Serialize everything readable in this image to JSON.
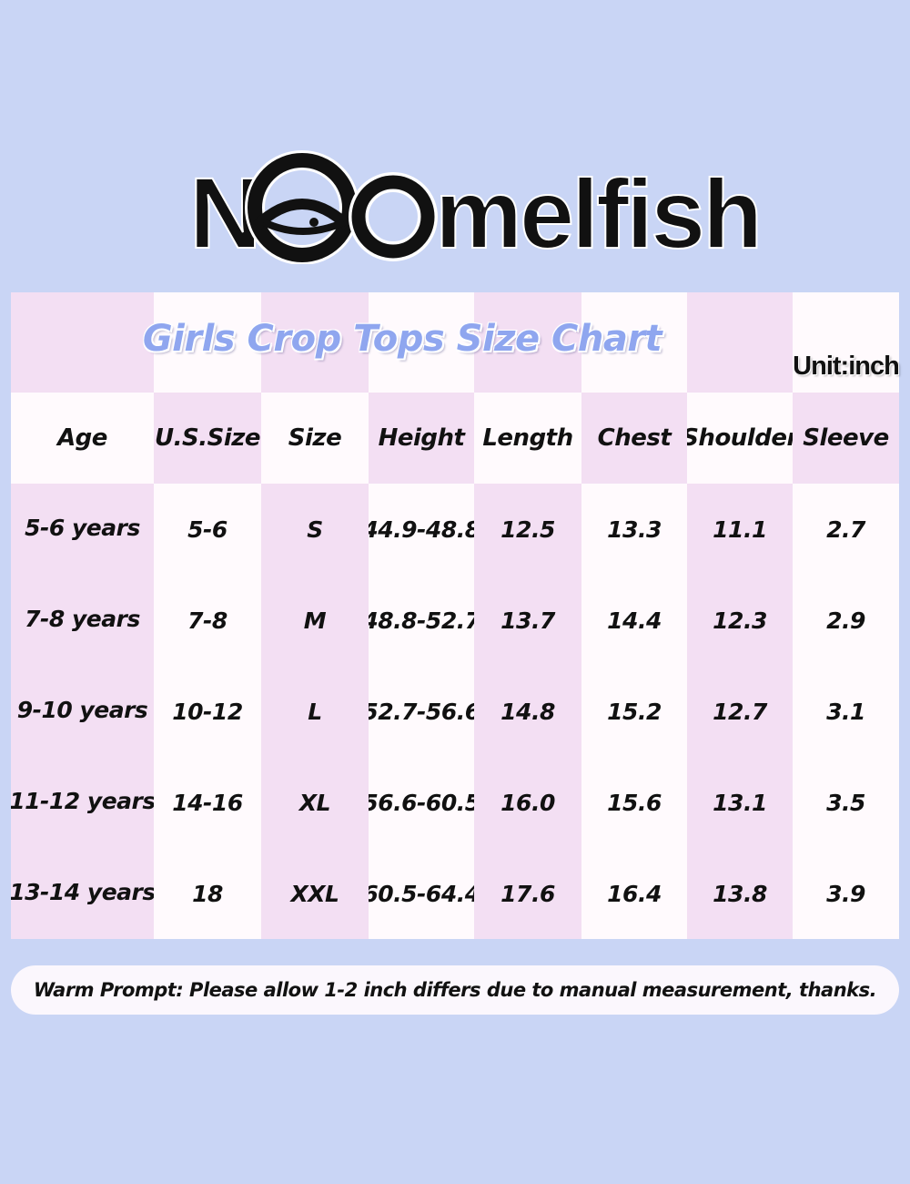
{
  "brand": {
    "name": "Noomelfish",
    "logo_text": "melfish"
  },
  "chart": {
    "title": "Girls Crop Tops Size Chart",
    "unit": "Unit:inch",
    "headers": [
      "Age",
      "U.S.Size",
      "Size",
      "Height",
      "Length",
      "Chest",
      "Shoulder",
      "Sleeve"
    ],
    "rows": [
      [
        "5-6 years",
        "5-6",
        "S",
        "44.9-48.8",
        "12.5",
        "13.3",
        "11.1",
        "2.7"
      ],
      [
        "7-8 years",
        "7-8",
        "M",
        "48.8-52.7",
        "13.7",
        "14.4",
        "12.3",
        "2.9"
      ],
      [
        "9-10 years",
        "10-12",
        "L",
        "52.7-56.6",
        "14.8",
        "15.2",
        "12.7",
        "3.1"
      ],
      [
        "11-12 years",
        "14-16",
        "XL",
        "56.6-60.5",
        "16.0",
        "15.6",
        "13.1",
        "3.5"
      ],
      [
        "13-14 years",
        "18",
        "XXL",
        "60.5-64.4",
        "17.6",
        "16.4",
        "13.8",
        "3.9"
      ]
    ]
  },
  "note": "Warm Prompt: Please allow 1-2 inch differs due to manual measurement, thanks.",
  "colors": {
    "background": "#c9d5f5",
    "pink_column": "#f3dff3",
    "white_column": "#fffafd",
    "title": "#8fa6ef"
  }
}
